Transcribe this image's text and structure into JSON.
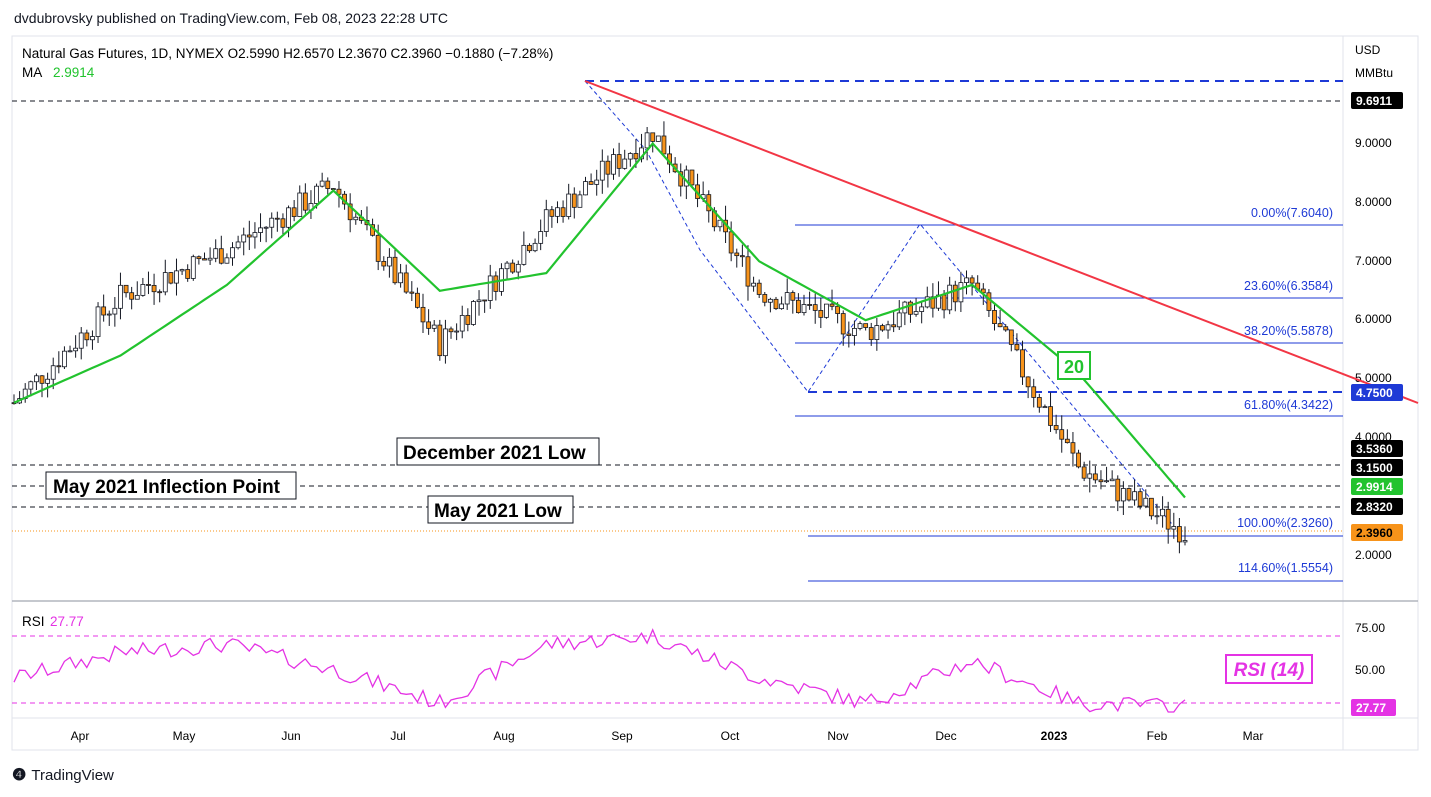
{
  "header": {
    "publisher_line": "dvdubrovsky published on TradingView.com, Feb 08, 2023 22:28 UTC"
  },
  "legend": {
    "symbol_line": "Natural Gas Futures, 1D, NYMEX  O2.5990  H2.6570  L2.3670  C2.3960  −0.1880 (−7.28%)",
    "ma_label": "MA",
    "ma_value": "2.9914"
  },
  "axis": {
    "currency": "USD",
    "unit": "MMBtu",
    "price_ticks": [
      "9.0000",
      "8.0000",
      "7.0000",
      "6.0000",
      "5.0000",
      "4.0000",
      "2.0000"
    ],
    "rsi_ticks": [
      "75.00",
      "50.00"
    ],
    "months": [
      "Apr",
      "May",
      "Jun",
      "Jul",
      "Aug",
      "Sep",
      "Oct",
      "Nov",
      "Dec",
      "2023",
      "Feb",
      "Mar"
    ]
  },
  "price_badges": [
    {
      "text": "9.6911",
      "bg": "#000000",
      "fg": "#ffffff"
    },
    {
      "text": "4.7500",
      "bg": "#1e3ad6",
      "fg": "#ffffff"
    },
    {
      "text": "3.5360",
      "bg": "#000000",
      "fg": "#ffffff"
    },
    {
      "text": "3.1500",
      "bg": "#000000",
      "fg": "#ffffff"
    },
    {
      "text": "2.9914",
      "bg": "#22c32e",
      "fg": "#ffffff"
    },
    {
      "text": "2.8320",
      "bg": "#000000",
      "fg": "#ffffff"
    },
    {
      "text": "2.3960",
      "bg": "#f7931a",
      "fg": "#000000"
    },
    {
      "text": "27.77",
      "bg": "#e433e4",
      "fg": "#ffffff"
    }
  ],
  "fib_labels": [
    "0.00%(7.6040)",
    "23.60%(6.3584)",
    "38.20%(5.5878)",
    "61.80%(4.3422)",
    "100.00%(2.3260)",
    "114.60%(1.5554)"
  ],
  "annotations": {
    "dec_2021_low": "December 2021 Low",
    "may_2021_inflection": "May 2021 Inflection Point",
    "may_2021_low": "May 2021 Low",
    "ma_period": "20",
    "rsi_title": "RSI (14)"
  },
  "rsi_legend": {
    "label": "RSI",
    "value": "27.77"
  },
  "footer": {
    "brand": "TradingView"
  },
  "colors": {
    "up": "#ffffff",
    "down": "#f7931a",
    "ma": "#22c32e",
    "trendline": "#f23645",
    "fib": "#1e3ad6",
    "rsi": "#e433e4"
  },
  "chart_data": {
    "type": "line",
    "title": "Natural Gas Futures, 1D, NYMEX",
    "x": [
      "Mar",
      "Apr",
      "May",
      "Jun",
      "Jul",
      "Aug",
      "Sep",
      "Oct",
      "Nov",
      "Dec",
      "Jan",
      "Feb"
    ],
    "series": [
      {
        "name": "Close",
        "values": [
          4.6,
          6.4,
          7.2,
          8.3,
          5.6,
          7.7,
          9.2,
          6.5,
          5.8,
          6.6,
          3.5,
          2.4
        ]
      },
      {
        "name": "MA",
        "values": [
          4.6,
          5.4,
          6.6,
          8.2,
          6.5,
          6.8,
          9.0,
          7.0,
          6.0,
          6.6,
          5.1,
          2.99
        ]
      }
    ],
    "rsi": {
      "values": [
        45,
        60,
        65,
        50,
        30,
        65,
        70,
        45,
        30,
        55,
        30,
        27.77
      ],
      "levels": [
        70,
        30
      ]
    },
    "price_range": [
      1.3,
      10.3
    ]
  }
}
